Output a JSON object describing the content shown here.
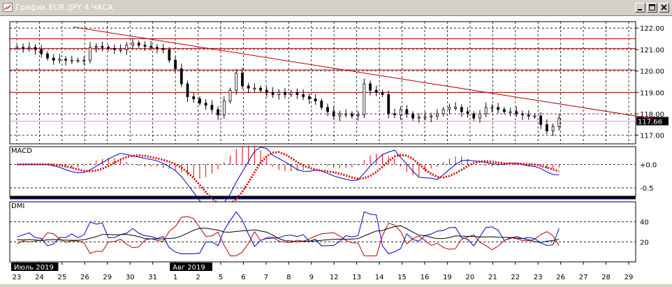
{
  "window": {
    "title": "График EUR /JPY  4 ЧАСА",
    "minimize_icon": "minimize-icon",
    "maximize_icon": "maximize-icon",
    "close_icon": "close-icon"
  },
  "price_panel": {
    "y_ticks": [
      "122.00",
      "121.00",
      "120.00",
      "119.00",
      "118.00",
      "117.00"
    ],
    "y_values": [
      122,
      121,
      120,
      119,
      118,
      117
    ],
    "ylim": [
      116.6,
      122.3
    ],
    "current_price": "117.66",
    "current_price_value": 117.66,
    "horizontal_levels": [
      121.5,
      121.05,
      120.05,
      119.0
    ],
    "trendline": {
      "from": [
        2.5,
        122.05
      ],
      "to": [
        28.5,
        117.7
      ]
    }
  },
  "macd_panel": {
    "label": "MACD",
    "y_ticks": [
      "+0.0",
      "-0.5"
    ],
    "y_values": [
      0,
      -0.5
    ]
  },
  "dmi_panel": {
    "label": "DMI",
    "y_ticks": [
      "40",
      "20"
    ],
    "y_values": [
      40,
      20
    ]
  },
  "x_axis": {
    "labels": [
      "23",
      "24",
      "25",
      "26",
      "29",
      "30",
      "31",
      "1",
      "2",
      "5",
      "6",
      "7",
      "8",
      "9",
      "12",
      "13",
      "14",
      "15",
      "16",
      "19",
      "20",
      "21",
      "22",
      "23",
      "26",
      "27",
      "28",
      "29"
    ],
    "month_labels": [
      {
        "text": "Июль 2019",
        "at_index": 0
      },
      {
        "text": "Авг 2019",
        "at_index": 7
      }
    ]
  },
  "colors": {
    "candle": "#000000",
    "trendline": "#b00000",
    "level_line": "#b00000",
    "current_price_line": "#ff80ff",
    "macd_line": "#0000c0",
    "macd_signal": "#e00000",
    "macd_hist": "#e00000",
    "dmi_plus": "#0000c0",
    "dmi_minus": "#c00000",
    "adx": "#000000"
  },
  "chart_data": {
    "type": "candlestick",
    "series_closes": [
      121.1,
      121.05,
      121.1,
      121.0,
      120.8,
      120.6,
      120.5,
      120.55,
      120.5,
      120.5,
      120.5,
      120.5,
      121.1,
      121.15,
      121.1,
      121.05,
      121.0,
      121.0,
      121.2,
      121.3,
      121.2,
      121.15,
      121.1,
      121.05,
      121.0,
      120.5,
      120.1,
      119.4,
      118.8,
      118.7,
      118.5,
      118.4,
      118.2,
      117.95,
      118.6,
      119.1,
      119.9,
      119.3,
      119.2,
      119.2,
      119.1,
      119.0,
      118.9,
      119.0,
      118.9,
      119.0,
      118.9,
      118.8,
      118.7,
      118.6,
      118.3,
      118.1,
      117.9,
      118.0,
      118.0,
      117.9,
      117.95,
      119.4,
      119.1,
      119.0,
      118.9,
      118.0,
      117.95,
      118.2,
      118.0,
      117.8,
      117.85,
      117.85,
      117.9,
      118.0,
      118.2,
      118.3,
      118.3,
      118.1,
      118.0,
      117.8,
      118.0,
      118.3,
      118.3,
      118.2,
      118.1,
      118.1,
      118.0,
      117.95,
      117.9,
      117.9,
      117.5,
      117.2,
      117.4,
      117.8
    ]
  }
}
